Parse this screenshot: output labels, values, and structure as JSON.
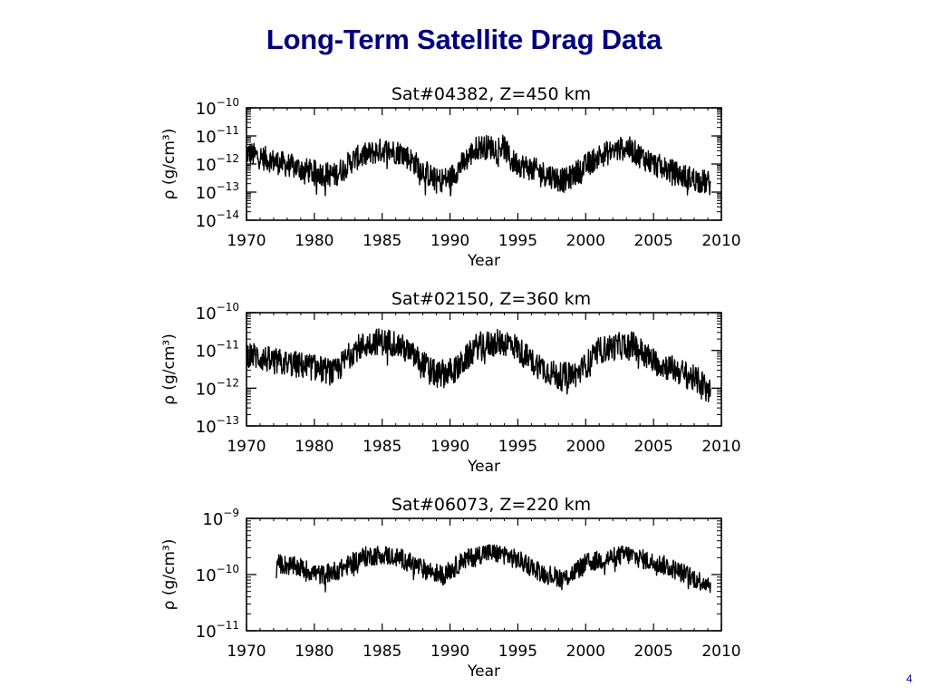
{
  "slide": {
    "title": "Long-Term Satellite Drag Data",
    "page_number": "4",
    "title_color": "#000080"
  },
  "chart_data": [
    {
      "type": "line",
      "title": "Sat#04382, Z=450 km",
      "xlabel": "Year",
      "ylabel": "ρ (g/cm³)",
      "yscale": "log",
      "xlim": [
        1975,
        2010
      ],
      "ylim": [
        1e-14,
        1e-10
      ],
      "xtick_labels": [
        "1970",
        "1980",
        "1985",
        "1990",
        "1995",
        "2000",
        "2005",
        "2010"
      ],
      "ytick_labels": [
        {
          "value": 1e-10,
          "base": "10",
          "exp": "−10"
        },
        {
          "value": 1e-11,
          "base": "10",
          "exp": "−11"
        },
        {
          "value": 1e-12,
          "base": "10",
          "exp": "−12"
        },
        {
          "value": 1e-13,
          "base": "10",
          "exp": "−13"
        },
        {
          "value": 1e-14,
          "base": "10",
          "exp": "−14"
        }
      ],
      "series": [
        {
          "name": "density",
          "x": [
            1975.0,
            1977.0,
            1980.0,
            1981.5,
            1983.0,
            1985.0,
            1986.5,
            1989.0,
            1990.0,
            1992.0,
            1994.0,
            1994.5,
            1997.0,
            1998.5,
            2001.0,
            2003.0,
            2005.0,
            2007.0,
            2009.2
          ],
          "log10_values": [
            -11.6,
            -11.9,
            -12.3,
            -12.4,
            -11.8,
            -11.5,
            -11.6,
            -12.6,
            -12.5,
            -11.4,
            -11.4,
            -11.9,
            -12.35,
            -12.6,
            -11.7,
            -11.4,
            -12.0,
            -12.4,
            -12.7
          ],
          "noise_decades": 0.55
        }
      ]
    },
    {
      "type": "line",
      "title": "Sat#02150, Z=360 km",
      "xlabel": "Year",
      "ylabel": "ρ (g/cm³)",
      "yscale": "log",
      "xlim": [
        1975,
        2010
      ],
      "ylim": [
        1e-13,
        1e-10
      ],
      "xtick_labels": [
        "1970",
        "1980",
        "1985",
        "1990",
        "1995",
        "2000",
        "2005",
        "2010"
      ],
      "ytick_labels": [
        {
          "value": 1e-10,
          "base": "10",
          "exp": "−10"
        },
        {
          "value": 1e-11,
          "base": "10",
          "exp": "−11"
        },
        {
          "value": 1e-12,
          "base": "10",
          "exp": "−12"
        },
        {
          "value": 1e-13,
          "base": "10",
          "exp": "−13"
        }
      ],
      "series": [
        {
          "name": "density",
          "x": [
            1975.0,
            1977.0,
            1980.0,
            1981.5,
            1983.0,
            1984.5,
            1986.0,
            1987.5,
            1989.0,
            1990.5,
            1992.0,
            1993.5,
            1994.5,
            1996.0,
            1998.0,
            1999.5,
            2001.0,
            2002.5,
            2003.5,
            2005.0,
            2007.0,
            2008.5,
            2009.2
          ],
          "log10_values": [
            -11.08,
            -11.29,
            -11.45,
            -11.6,
            -10.96,
            -10.76,
            -10.8,
            -11.2,
            -11.65,
            -11.5,
            -10.88,
            -10.8,
            -10.8,
            -11.29,
            -11.7,
            -11.6,
            -11.0,
            -10.88,
            -10.85,
            -11.29,
            -11.57,
            -11.85,
            -12.1
          ],
          "noise_decades": 0.45
        }
      ]
    },
    {
      "type": "line",
      "title": "Sat#06073, Z=220 km",
      "xlabel": "Year",
      "ylabel": "ρ (g/cm³)",
      "yscale": "log",
      "xlim": [
        1975,
        2010
      ],
      "ylim": [
        1e-11,
        1e-09
      ],
      "xtick_labels": [
        "1970",
        "1980",
        "1985",
        "1990",
        "1995",
        "2000",
        "2005",
        "2010"
      ],
      "ytick_labels": [
        {
          "value": 1e-09,
          "base": "10",
          "exp": "−9"
        },
        {
          "value": 1e-10,
          "base": "10",
          "exp": "−10"
        },
        {
          "value": 1e-11,
          "base": "10",
          "exp": "−11"
        }
      ],
      "series": [
        {
          "name": "density",
          "x": [
            1977.2,
            1979.0,
            1980.5,
            1982.0,
            1983.5,
            1985.0,
            1986.5,
            1988.0,
            1989.5,
            1991.0,
            1992.5,
            1994.0,
            1995.5,
            1997.0,
            1998.5,
            2000.0,
            2001.5,
            2003.0,
            2004.5,
            2006.0,
            2007.5,
            2008.5,
            2009.2
          ],
          "log10_values": [
            -9.8,
            -9.88,
            -10.01,
            -9.9,
            -9.69,
            -9.64,
            -9.72,
            -9.9,
            -10.01,
            -9.75,
            -9.61,
            -9.64,
            -9.8,
            -9.99,
            -10.07,
            -9.8,
            -9.72,
            -9.64,
            -9.75,
            -9.85,
            -10.01,
            -10.12,
            -10.15
          ],
          "noise_decades": 0.22
        }
      ]
    }
  ]
}
